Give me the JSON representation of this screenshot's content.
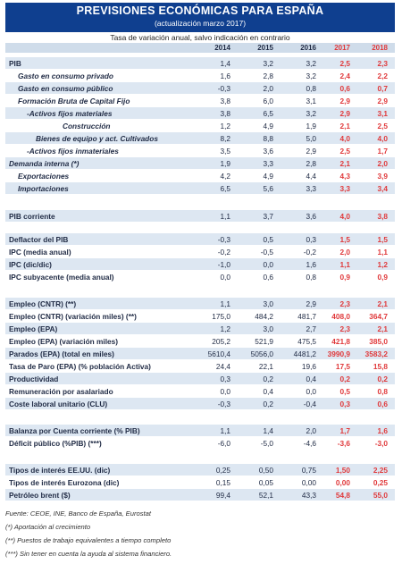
{
  "header": {
    "title": "PREVISIONES ECONÓMICAS PARA ESPAÑA",
    "subtitle": "(actualización marzo 2017)",
    "note": "Tasa de variación anual, salvo indicación en contrario"
  },
  "years": [
    "2014",
    "2015",
    "2016",
    "2017",
    "2018"
  ],
  "rows": [
    {
      "label": "PIB",
      "style": "b",
      "indent": 0,
      "band": true,
      "values": [
        "1,4",
        "3,2",
        "3,2",
        "2,5",
        "2,3"
      ]
    },
    {
      "label": "Gasto en consumo privado",
      "style": "bi",
      "indent": 10,
      "band": false,
      "values": [
        "1,6",
        "2,8",
        "3,2",
        "2,4",
        "2,2"
      ]
    },
    {
      "label": "Gasto en consumo público",
      "style": "bi",
      "indent": 10,
      "band": true,
      "values": [
        "-0,3",
        "2,0",
        "0,8",
        "0,6",
        "0,7"
      ]
    },
    {
      "label": "Formación Bruta de Capital Fijo",
      "style": "bi",
      "indent": 10,
      "band": false,
      "values": [
        "3,8",
        "6,0",
        "3,1",
        "2,9",
        "2,9"
      ]
    },
    {
      "label": "-Activos fijos materiales",
      "style": "bi",
      "indent": 20,
      "band": true,
      "values": [
        "3,8",
        "6,5",
        "3,2",
        "2,9",
        "3,1"
      ]
    },
    {
      "label": "Construcción",
      "style": "bi",
      "indent": 60,
      "band": false,
      "values": [
        "1,2",
        "4,9",
        "1,9",
        "2,1",
        "2,5"
      ]
    },
    {
      "label": "Bienes de equipo y act. Cultivados",
      "style": "bi",
      "indent": 30,
      "band": true,
      "values": [
        "8,2",
        "8,8",
        "5,0",
        "4,0",
        "4,0"
      ]
    },
    {
      "label": "-Activos fijos inmateriales",
      "style": "bi",
      "indent": 20,
      "band": false,
      "values": [
        "3,5",
        "3,6",
        "2,9",
        "2,5",
        "1,7"
      ]
    },
    {
      "label": "Demanda interna (*)",
      "style": "bi",
      "indent": 0,
      "band": true,
      "values": [
        "1,9",
        "3,3",
        "2,8",
        "2,1",
        "2,0"
      ]
    },
    {
      "label": "Exportaciones",
      "style": "bi",
      "indent": 10,
      "band": false,
      "values": [
        "4,2",
        "4,9",
        "4,4",
        "4,3",
        "3,9"
      ]
    },
    {
      "label": "Importaciones",
      "style": "bi",
      "indent": 10,
      "band": true,
      "values": [
        "6,5",
        "5,6",
        "3,3",
        "3,3",
        "3,4"
      ]
    },
    {
      "label": "PIB corriente",
      "style": "b",
      "indent": 0,
      "band": true,
      "values": [
        "1,1",
        "3,7",
        "3,6",
        "4,0",
        "3,8"
      ]
    },
    {
      "label": "Deflactor del PIB",
      "style": "b",
      "indent": 0,
      "band": true,
      "values": [
        "-0,3",
        "0,5",
        "0,3",
        "1,5",
        "1,5"
      ]
    },
    {
      "label": "IPC (media anual)",
      "style": "b",
      "indent": 0,
      "band": false,
      "values": [
        "-0,2",
        "-0,5",
        "-0,2",
        "2,0",
        "1,1"
      ]
    },
    {
      "label": "IPC (dic/dic)",
      "style": "b",
      "indent": 0,
      "band": true,
      "values": [
        "-1,0",
        "0,0",
        "1,6",
        "1,1",
        "1,2"
      ]
    },
    {
      "label": "IPC subyacente (media anual)",
      "style": "b",
      "indent": 0,
      "band": false,
      "values": [
        "0,0",
        "0,6",
        "0,8",
        "0,9",
        "0,9"
      ]
    },
    {
      "label": "Empleo (CNTR) (**)",
      "style": "b",
      "indent": 0,
      "band": true,
      "values": [
        "1,1",
        "3,0",
        "2,9",
        "2,3",
        "2,1"
      ]
    },
    {
      "label": "Empleo (CNTR) (variación miles) (**)",
      "style": "b",
      "indent": 0,
      "band": false,
      "values": [
        "175,0",
        "484,2",
        "481,7",
        "408,0",
        "364,7"
      ]
    },
    {
      "label": "Empleo (EPA)",
      "style": "b",
      "indent": 0,
      "band": true,
      "values": [
        "1,2",
        "3,0",
        "2,7",
        "2,3",
        "2,1"
      ]
    },
    {
      "label": "Empleo (EPA) (variación miles)",
      "style": "b",
      "indent": 0,
      "band": false,
      "values": [
        "205,2",
        "521,9",
        "475,5",
        "421,8",
        "385,0"
      ]
    },
    {
      "label": "Parados (EPA) (total en miles)",
      "style": "b",
      "indent": 0,
      "band": true,
      "values": [
        "5610,4",
        "5056,0",
        "4481,2",
        "3990,9",
        "3583,2"
      ]
    },
    {
      "label": "Tasa de Paro (EPA) (% población Activa)",
      "style": "b",
      "indent": 0,
      "band": false,
      "values": [
        "24,4",
        "22,1",
        "19,6",
        "17,5",
        "15,8"
      ]
    },
    {
      "label": "Productividad",
      "style": "b",
      "indent": 0,
      "band": true,
      "values": [
        "0,3",
        "0,2",
        "0,4",
        "0,2",
        "0,2"
      ]
    },
    {
      "label": "Remuneración por asalariado",
      "style": "b",
      "indent": 0,
      "band": false,
      "values": [
        "0,0",
        "0,4",
        "0,0",
        "0,5",
        "0,8"
      ]
    },
    {
      "label": "Coste laboral unitario (CLU)",
      "style": "b",
      "indent": 0,
      "band": true,
      "values": [
        "-0,3",
        "0,2",
        "-0,4",
        "0,3",
        "0,6"
      ]
    },
    {
      "label": "Balanza por Cuenta corriente (% PIB)",
      "style": "b",
      "indent": 0,
      "band": true,
      "values": [
        "1,1",
        "1,4",
        "2,0",
        "1,7",
        "1,6"
      ]
    },
    {
      "label": "Déficit público (%PIB) (***)",
      "style": "b",
      "indent": 0,
      "band": false,
      "values": [
        "-6,0",
        "-5,0",
        "-4,6",
        "-3,6",
        "-3,0"
      ]
    },
    {
      "label": "Tipos de interés EE.UU. (dic)",
      "style": "b",
      "indent": 0,
      "band": true,
      "values": [
        "0,25",
        "0,50",
        "0,75",
        "1,50",
        "2,25"
      ]
    },
    {
      "label": "Tipos de interés Eurozona (dic)",
      "style": "b",
      "indent": 0,
      "band": false,
      "values": [
        "0,15",
        "0,05",
        "0,00",
        "0,00",
        "0,25"
      ]
    },
    {
      "label": "Petróleo brent ($)",
      "style": "b",
      "indent": 0,
      "band": true,
      "values": [
        "99,4",
        "52,1",
        "43,3",
        "54,8",
        "55,0"
      ]
    }
  ],
  "footnotes": [
    "Fuente: CEOE, INE, Banco de España, Eurostat",
    "(*) Aportación al crecimiento",
    "(**) Puestos de trabajo equivalentes a tiempo completo",
    "(***) Sin tener en cuenta la ayuda al sistema financiero."
  ],
  "colors": {
    "header_bg": "#0f3f8f",
    "band_bg": "#dde7f2",
    "forecast_text": "#e0393b",
    "body_text": "#1f2a44"
  }
}
